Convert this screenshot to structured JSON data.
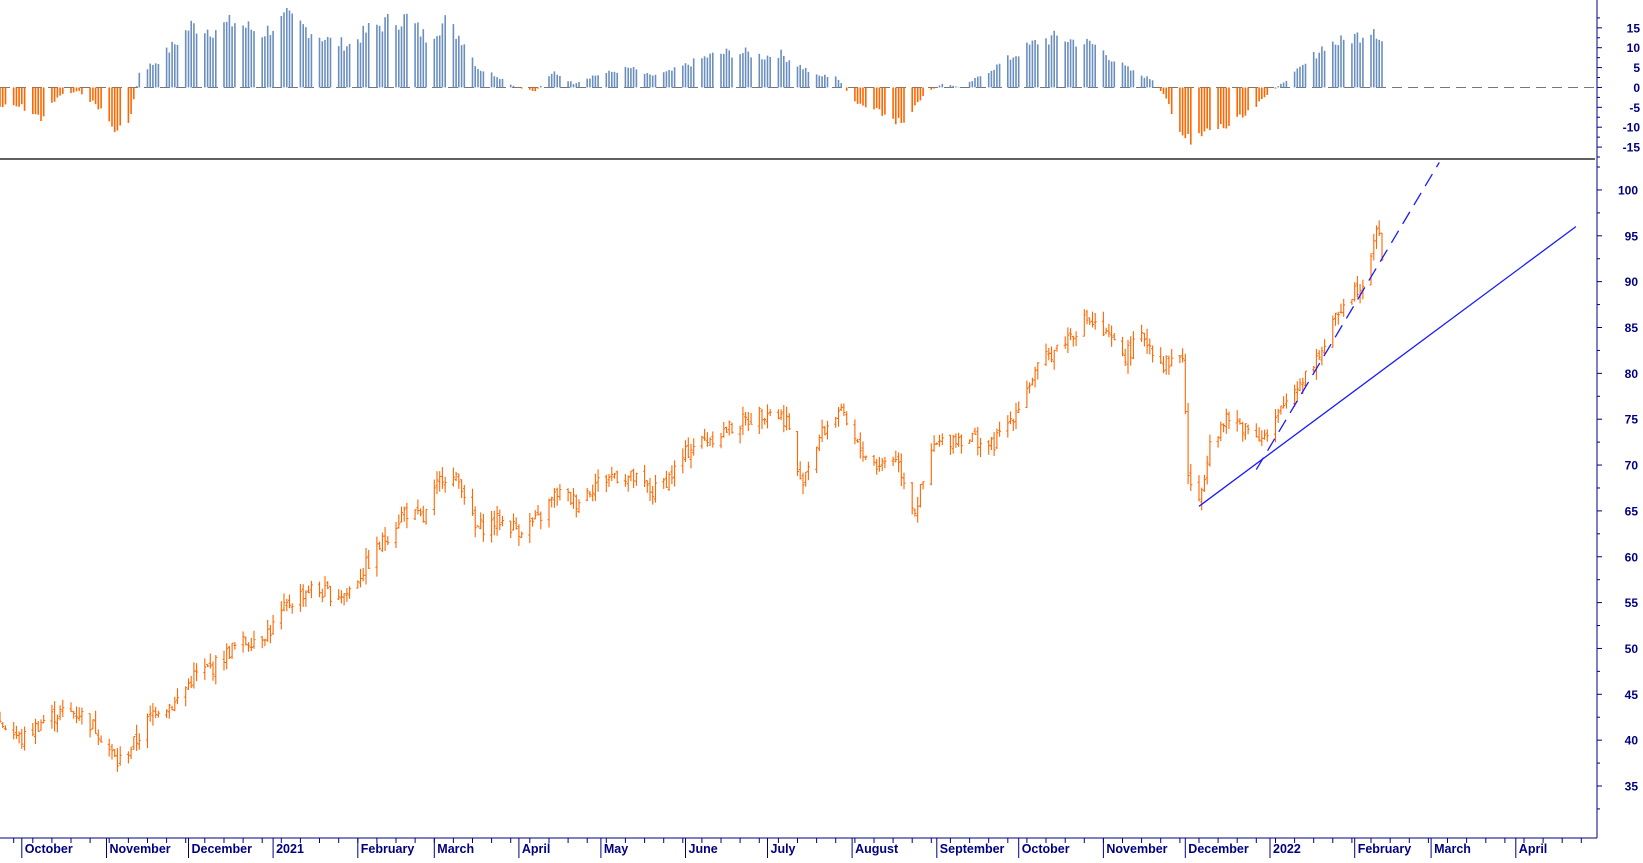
{
  "chart_data": [
    {
      "type": "bar",
      "panel": "oscillator",
      "title": "",
      "ylim": [
        -18,
        22
      ],
      "ytick_labels": [
        "-15",
        "-10",
        "-5",
        "0",
        "5",
        "10",
        "15"
      ],
      "ytick_values": [
        -15,
        -10,
        -5,
        0,
        5,
        10,
        15
      ],
      "colors": {
        "positive": "#6a8fbf",
        "negative": "#ff6600",
        "axis": "#000080",
        "zero_line": "#777777"
      },
      "x_start": "2020-10-01",
      "x_end": "2022-02-11",
      "values_note": "smoothed daily oscillator values, keyed by approximate date",
      "series": [
        {
          "name": "",
          "points": [
            [
              "2020-10-01",
              -5
            ],
            [
              "2020-10-08",
              -8
            ],
            [
              "2020-10-15",
              -2
            ],
            [
              "2020-10-22",
              -1
            ],
            [
              "2020-10-29",
              -5
            ],
            [
              "2020-11-05",
              -12
            ],
            [
              "2020-11-10",
              -7
            ],
            [
              "2020-11-13",
              4
            ],
            [
              "2020-11-20",
              7
            ],
            [
              "2020-11-27",
              12
            ],
            [
              "2020-12-02",
              16
            ],
            [
              "2020-12-10",
              15
            ],
            [
              "2020-12-18",
              17
            ],
            [
              "2020-12-28",
              14
            ],
            [
              "2021-01-06",
              18
            ],
            [
              "2021-01-14",
              15
            ],
            [
              "2021-01-22",
              12
            ],
            [
              "2021-01-29",
              11
            ],
            [
              "2021-02-05",
              15
            ],
            [
              "2021-02-12",
              17
            ],
            [
              "2021-02-19",
              18
            ],
            [
              "2021-02-26",
              13
            ],
            [
              "2021-03-05",
              17
            ],
            [
              "2021-03-12",
              12
            ],
            [
              "2021-03-17",
              5
            ],
            [
              "2021-03-24",
              3
            ],
            [
              "2021-03-31",
              0
            ],
            [
              "2021-04-07",
              -1
            ],
            [
              "2021-04-14",
              4
            ],
            [
              "2021-04-21",
              1
            ],
            [
              "2021-04-28",
              3
            ],
            [
              "2021-05-05",
              4
            ],
            [
              "2021-05-12",
              5
            ],
            [
              "2021-05-19",
              3
            ],
            [
              "2021-05-26",
              4
            ],
            [
              "2021-06-02",
              6
            ],
            [
              "2021-06-09",
              8
            ],
            [
              "2021-06-16",
              9
            ],
            [
              "2021-06-23",
              9
            ],
            [
              "2021-06-30",
              8
            ],
            [
              "2021-07-05",
              9
            ],
            [
              "2021-07-12",
              6
            ],
            [
              "2021-07-19",
              3
            ],
            [
              "2021-07-26",
              3
            ],
            [
              "2021-08-02",
              -4
            ],
            [
              "2021-08-09",
              -6
            ],
            [
              "2021-08-16",
              -8
            ],
            [
              "2021-08-20",
              -10
            ],
            [
              "2021-08-27",
              -2
            ],
            [
              "2021-09-03",
              1
            ],
            [
              "2021-09-10",
              0
            ],
            [
              "2021-09-17",
              3
            ],
            [
              "2021-09-24",
              6
            ],
            [
              "2021-10-01",
              9
            ],
            [
              "2021-10-08",
              12
            ],
            [
              "2021-10-15",
              13
            ],
            [
              "2021-10-22",
              12
            ],
            [
              "2021-10-29",
              11
            ],
            [
              "2021-11-05",
              7
            ],
            [
              "2021-11-12",
              4
            ],
            [
              "2021-11-19",
              2
            ],
            [
              "2021-11-24",
              -3
            ],
            [
              "2021-11-30",
              -12
            ],
            [
              "2021-12-03",
              -15
            ],
            [
              "2021-12-10",
              -11
            ],
            [
              "2021-12-17",
              -10
            ],
            [
              "2021-12-24",
              -7
            ],
            [
              "2021-12-31",
              -2
            ],
            [
              "2022-01-07",
              2
            ],
            [
              "2022-01-14",
              6
            ],
            [
              "2022-01-21",
              11
            ],
            [
              "2022-01-28",
              12
            ],
            [
              "2022-02-04",
              14
            ],
            [
              "2022-02-08",
              16
            ],
            [
              "2022-02-11",
              12
            ]
          ]
        }
      ]
    },
    {
      "type": "line",
      "panel": "price",
      "title": "",
      "ylim": [
        30,
        103
      ],
      "ytick_labels": [
        "35",
        "40",
        "45",
        "50",
        "55",
        "60",
        "65",
        "70",
        "75",
        "80",
        "85",
        "90",
        "95",
        "100"
      ],
      "ytick_values": [
        35,
        40,
        45,
        50,
        55,
        60,
        65,
        70,
        75,
        80,
        85,
        90,
        95,
        100
      ],
      "colors": {
        "price": "#ff6600",
        "trendline": "#1a1aff",
        "axis": "#000080",
        "text": "#000080"
      },
      "x_start": "2020-10-01",
      "x_end": "2022-02-11",
      "series": [
        {
          "name": "",
          "points": [
            [
              "2020-09-23",
              42
            ],
            [
              "2020-10-01",
              40
            ],
            [
              "2020-10-08",
              42
            ],
            [
              "2020-10-15",
              43
            ],
            [
              "2020-10-22",
              43
            ],
            [
              "2020-10-29",
              41
            ],
            [
              "2020-11-05",
              37.5
            ],
            [
              "2020-11-12",
              40
            ],
            [
              "2020-11-19",
              43.5
            ],
            [
              "2020-11-26",
              44
            ],
            [
              "2020-12-03",
              47
            ],
            [
              "2020-12-10",
              48
            ],
            [
              "2020-12-17",
              50
            ],
            [
              "2020-12-24",
              51
            ],
            [
              "2020-12-31",
              52
            ],
            [
              "2021-01-07",
              55
            ],
            [
              "2021-01-14",
              56.5
            ],
            [
              "2021-01-21",
              56
            ],
            [
              "2021-01-28",
              56
            ],
            [
              "2021-02-04",
              59
            ],
            [
              "2021-02-11",
              62
            ],
            [
              "2021-02-18",
              65
            ],
            [
              "2021-02-25",
              64
            ],
            [
              "2021-03-04",
              69
            ],
            [
              "2021-03-11",
              68
            ],
            [
              "2021-03-16",
              63
            ],
            [
              "2021-03-25",
              64
            ],
            [
              "2021-04-01",
              63
            ],
            [
              "2021-04-08",
              64
            ],
            [
              "2021-04-15",
              67
            ],
            [
              "2021-04-22",
              66
            ],
            [
              "2021-04-29",
              68
            ],
            [
              "2021-05-06",
              69
            ],
            [
              "2021-05-13",
              68.5
            ],
            [
              "2021-05-20",
              67
            ],
            [
              "2021-05-27",
              69
            ],
            [
              "2021-06-03",
              72
            ],
            [
              "2021-06-10",
              73
            ],
            [
              "2021-06-17",
              74
            ],
            [
              "2021-06-24",
              75
            ],
            [
              "2021-07-01",
              76
            ],
            [
              "2021-07-08",
              75
            ],
            [
              "2021-07-13",
              68
            ],
            [
              "2021-07-20",
              73
            ],
            [
              "2021-07-27",
              76
            ],
            [
              "2021-08-03",
              72
            ],
            [
              "2021-08-10",
              70
            ],
            [
              "2021-08-17",
              71
            ],
            [
              "2021-08-24",
              65
            ],
            [
              "2021-08-31",
              72
            ],
            [
              "2021-09-07",
              73
            ],
            [
              "2021-09-14",
              73
            ],
            [
              "2021-09-21",
              72
            ],
            [
              "2021-09-28",
              75
            ],
            [
              "2021-10-05",
              79
            ],
            [
              "2021-10-12",
              82
            ],
            [
              "2021-10-19",
              84
            ],
            [
              "2021-10-26",
              86
            ],
            [
              "2021-11-02",
              84
            ],
            [
              "2021-11-09",
              82
            ],
            [
              "2021-11-16",
              84
            ],
            [
              "2021-11-23",
              81
            ],
            [
              "2021-11-30",
              82
            ],
            [
              "2021-12-02",
              69
            ],
            [
              "2021-12-06",
              65.5
            ],
            [
              "2021-12-10",
              73
            ],
            [
              "2021-12-17",
              75
            ],
            [
              "2021-12-24",
              74
            ],
            [
              "2021-12-31",
              73
            ],
            [
              "2022-01-07",
              77
            ],
            [
              "2022-01-14",
              80
            ],
            [
              "2022-01-21",
              83
            ],
            [
              "2022-01-28",
              88
            ],
            [
              "2022-02-04",
              90
            ],
            [
              "2022-02-09",
              96
            ],
            [
              "2022-02-11",
              93
            ]
          ]
        }
      ],
      "trendlines": [
        {
          "style": "solid",
          "from": [
            "2021-12-06",
            65.5
          ],
          "to": [
            "2022-04-23",
            96
          ]
        },
        {
          "style": "dashed",
          "from": [
            "2021-12-27",
            69.5
          ],
          "to": [
            "2022-03-04",
            103
          ]
        }
      ]
    }
  ],
  "time_axis": {
    "labels": [
      "October",
      "November",
      "December",
      "2021",
      "February",
      "March",
      "April",
      "May",
      "June",
      "July",
      "August",
      "September",
      "October",
      "November",
      "December",
      "2022",
      "February",
      "March",
      "April"
    ],
    "dates": [
      "2020-10-01",
      "2020-11-01",
      "2020-12-01",
      "2021-01-01",
      "2021-02-01",
      "2021-03-01",
      "2021-04-01",
      "2021-05-01",
      "2021-06-01",
      "2021-07-01",
      "2021-08-01",
      "2021-09-01",
      "2021-10-01",
      "2021-11-01",
      "2021-12-01",
      "2022-01-01",
      "2022-02-01",
      "2022-03-01",
      "2022-04-01"
    ]
  }
}
